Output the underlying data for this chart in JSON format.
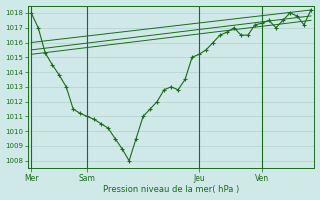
{
  "background_color": "#cfe8e8",
  "grid_color": "#aacccc",
  "line_color": "#1a6b1a",
  "axis_label_color": "#1a6b1a",
  "tick_label_color": "#1a6b1a",
  "xlabel": "Pression niveau de la mer( hPa )",
  "ylim": [
    1007.5,
    1018.5
  ],
  "yticks": [
    1008,
    1009,
    1010,
    1011,
    1012,
    1013,
    1014,
    1015,
    1016,
    1017,
    1018
  ],
  "day_labels": [
    "Mer",
    "Sam",
    "Jeu",
    "Ven"
  ],
  "day_positions": [
    0,
    8,
    24,
    33
  ],
  "xlim": [
    -0.5,
    40.5
  ],
  "series1_x": [
    0,
    1,
    2,
    3,
    4,
    5,
    6,
    7,
    8,
    9,
    10,
    11,
    12,
    13,
    14,
    15,
    16,
    17,
    18,
    19,
    20,
    21,
    22,
    23,
    24,
    25,
    26,
    27,
    28,
    29,
    30,
    31,
    32,
    33,
    34,
    35,
    36,
    37,
    38,
    39,
    40
  ],
  "series1_y": [
    1018.0,
    1017.0,
    1015.3,
    1014.5,
    1013.8,
    1013.0,
    1011.5,
    1011.2,
    1011.0,
    1010.8,
    1010.5,
    1010.2,
    1009.5,
    1008.8,
    1008.0,
    1009.5,
    1011.0,
    1011.5,
    1012.0,
    1012.8,
    1013.0,
    1012.8,
    1013.5,
    1015.0,
    1015.2,
    1015.5,
    1016.0,
    1016.5,
    1016.7,
    1017.0,
    1016.5,
    1016.5,
    1017.2,
    1017.3,
    1017.5,
    1017.0,
    1017.5,
    1018.0,
    1017.8,
    1017.2,
    1018.2
  ],
  "series2_x": [
    0,
    40
  ],
  "series2_y": [
    1015.2,
    1017.5
  ],
  "series3_x": [
    0,
    40
  ],
  "series3_y": [
    1015.5,
    1017.8
  ],
  "series4_x": [
    0,
    40
  ],
  "series4_y": [
    1016.0,
    1018.2
  ]
}
